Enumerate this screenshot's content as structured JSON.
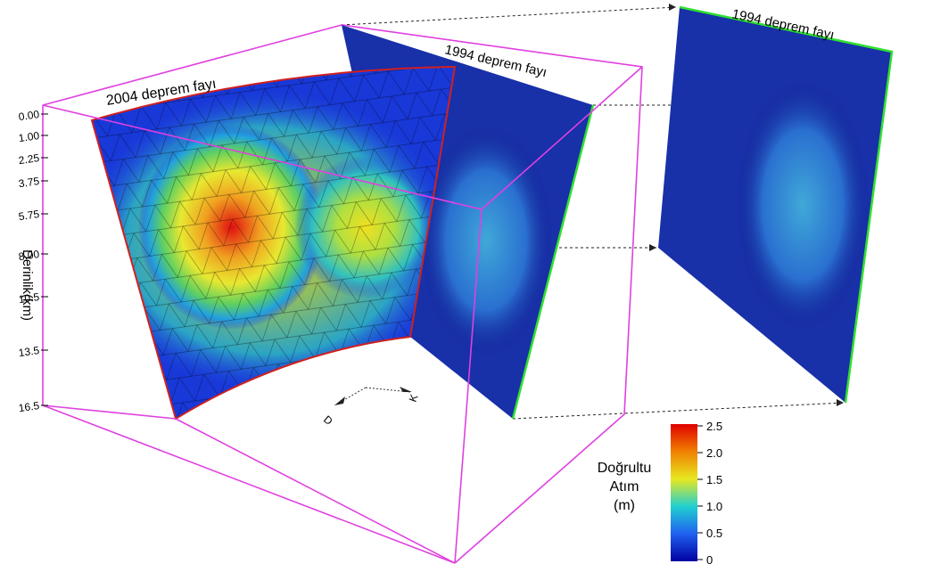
{
  "fault_labels": [
    "2004 deprem fayı",
    "1994 deprem fayı",
    "1994 deprem fayı"
  ],
  "depth_axis": {
    "label": "Derinlik(km)",
    "ticks": [
      "0.00",
      "1.00",
      "2.25",
      "3.75",
      "5.75",
      "8.00",
      "10.5",
      "13.5",
      "16.5"
    ]
  },
  "compass": [
    "D",
    "K"
  ],
  "colorbar": {
    "title": [
      "Doğrultu",
      "Atım",
      "(m)"
    ],
    "ticks": [
      "2.5",
      "2.0",
      "1.5",
      "1.0",
      "0.5",
      "0"
    ]
  }
}
